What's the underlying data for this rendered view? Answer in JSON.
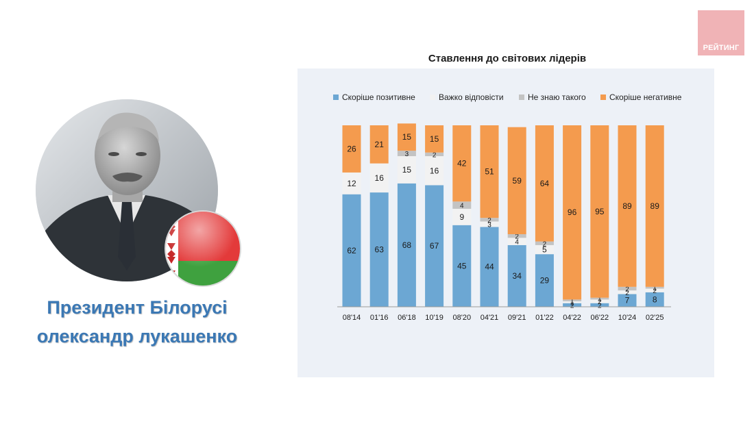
{
  "brand": {
    "logo_text": "РЕЙТИНГ",
    "logo_color": "#f0b3b6"
  },
  "subject": {
    "caption_line1": "Президент Білорусі",
    "caption_line2": "олександр лукашенко",
    "caption_color": "#3b78b4",
    "flag_colors": [
      "#e33a3a",
      "#3fa13f",
      "#ffffff"
    ]
  },
  "chart_data": {
    "type": "bar",
    "stacked": true,
    "title": "Ставлення до світових лідерів",
    "categories": [
      "08'14",
      "01'16",
      "06'18",
      "10'19",
      "08'20",
      "04'21",
      "09'21",
      "01'22",
      "04'22",
      "06'22",
      "10'24",
      "02'25"
    ],
    "series": [
      {
        "name": "Скоріше позитивне",
        "color": "#6ca7d3",
        "values": [
          62,
          63,
          68,
          67,
          45,
          44,
          34,
          29,
          2,
          2,
          7,
          8
        ]
      },
      {
        "name": "Важко відповісти",
        "color": "#f2f2f2",
        "values": [
          12,
          16,
          15,
          16,
          9,
          3,
          4,
          5,
          1,
          2,
          2,
          2
        ]
      },
      {
        "name": "Не знаю такого",
        "color": "#c3c3c3",
        "values": [
          0,
          0,
          3,
          2,
          4,
          2,
          2,
          2,
          1,
          1,
          2,
          1
        ]
      },
      {
        "name": "Скоріше негативне",
        "color": "#f49b4e",
        "values": [
          26,
          21,
          15,
          15,
          42,
          51,
          59,
          64,
          96,
          95,
          89,
          89
        ]
      }
    ],
    "ylim": [
      0,
      100
    ],
    "grid": false,
    "legend_position": "top"
  }
}
